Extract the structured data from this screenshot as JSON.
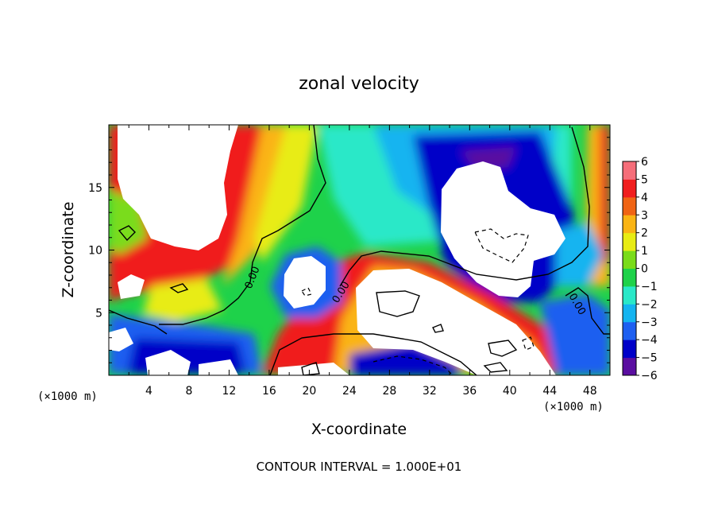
{
  "chart_data": {
    "type": "heatmap",
    "title": "zonal velocity",
    "xlabel": "X-coordinate",
    "ylabel": "Z-coordinate",
    "x_unit_left": "(×1000 m)",
    "x_unit_right": "(×1000 m)",
    "xlim": [
      0,
      50
    ],
    "ylim": [
      0,
      20
    ],
    "x_ticks": [
      "4",
      "8",
      "12",
      "16",
      "20",
      "24",
      "28",
      "32",
      "36",
      "40",
      "44",
      "48"
    ],
    "y_ticks": [
      "5",
      "10",
      "15"
    ],
    "colorbar": {
      "range": [
        -6,
        6
      ],
      "ticks": [
        "6",
        "5",
        "4",
        "3",
        "2",
        "1",
        "0",
        "−1",
        "−2",
        "−3",
        "−4",
        "−5",
        "−6"
      ],
      "colors": [
        "#5a0ea0",
        "#0000c8",
        "#1e5ff0",
        "#14b4f0",
        "#2ae8c8",
        "#1ed24a",
        "#7adc1a",
        "#e8ec14",
        "#fab414",
        "#f06414",
        "#f01e1e",
        "#f56e7a"
      ]
    },
    "contour_labels": [
      "0.00",
      "0.00",
      "0.00"
    ],
    "grid": false,
    "legend": "colorbar-right",
    "note": "CONTOUR INTERVAL = 1.000E+01"
  }
}
